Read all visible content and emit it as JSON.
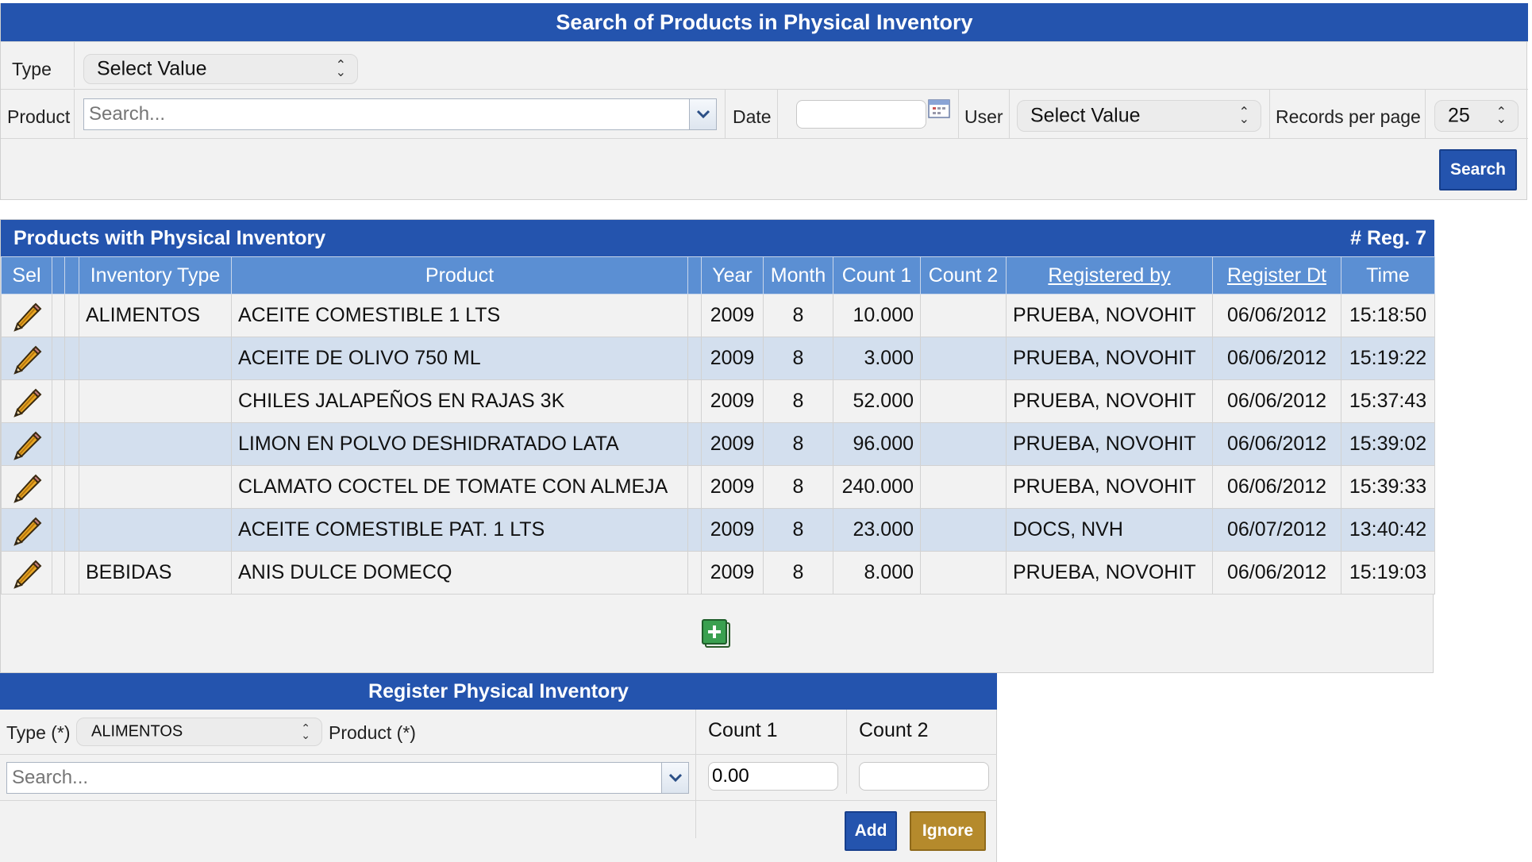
{
  "search": {
    "title": "Search of Products in Physical Inventory",
    "type_label": "Type",
    "type_value": "Select Value",
    "product_label": "Product",
    "product_placeholder": "Search...",
    "date_label": "Date",
    "date_value": "",
    "user_label": "User",
    "user_value": "Select Value",
    "records_label": "Records per page",
    "records_value": "25",
    "search_button": "Search"
  },
  "results": {
    "title": "Products with Physical Inventory",
    "count_label": "# Reg. 7",
    "columns": {
      "sel": "Sel",
      "inventory_type": "Inventory Type",
      "product": "Product",
      "year": "Year",
      "month": "Month",
      "count1": "Count 1",
      "count2": "Count 2",
      "registered_by": "Registered by",
      "register_dt": "Register Dt",
      "time": "Time"
    },
    "rows": [
      {
        "type": "ALIMENTOS",
        "product": "ACEITE COMESTIBLE 1 LTS",
        "year": "2009",
        "month": "8",
        "count1": "10.000",
        "count2": "",
        "registered_by": "PRUEBA, NOVOHIT",
        "register_dt": "06/06/2012",
        "time": "15:18:50"
      },
      {
        "type": "",
        "product": "ACEITE DE OLIVO 750 ML",
        "year": "2009",
        "month": "8",
        "count1": "3.000",
        "count2": "",
        "registered_by": "PRUEBA, NOVOHIT",
        "register_dt": "06/06/2012",
        "time": "15:19:22"
      },
      {
        "type": "",
        "product": "CHILES JALAPEÑOS EN RAJAS 3K",
        "year": "2009",
        "month": "8",
        "count1": "52.000",
        "count2": "",
        "registered_by": "PRUEBA, NOVOHIT",
        "register_dt": "06/06/2012",
        "time": "15:37:43"
      },
      {
        "type": "",
        "product": "LIMON EN POLVO DESHIDRATADO LATA",
        "year": "2009",
        "month": "8",
        "count1": "96.000",
        "count2": "",
        "registered_by": "PRUEBA, NOVOHIT",
        "register_dt": "06/06/2012",
        "time": "15:39:02"
      },
      {
        "type": "",
        "product": "CLAMATO COCTEL DE TOMATE CON ALMEJA",
        "year": "2009",
        "month": "8",
        "count1": "240.000",
        "count2": "",
        "registered_by": "PRUEBA, NOVOHIT",
        "register_dt": "06/06/2012",
        "time": "15:39:33"
      },
      {
        "type": "",
        "product": "ACEITE COMESTIBLE PAT. 1 LTS",
        "year": "2009",
        "month": "8",
        "count1": "23.000",
        "count2": "",
        "registered_by": "DOCS, NVH",
        "register_dt": "06/07/2012",
        "time": "13:40:42"
      },
      {
        "type": "BEBIDAS",
        "product": "ANIS DULCE DOMECQ",
        "year": "2009",
        "month": "8",
        "count1": "8.000",
        "count2": "",
        "registered_by": "PRUEBA, NOVOHIT",
        "register_dt": "06/06/2012",
        "time": "15:19:03"
      }
    ]
  },
  "register": {
    "title": "Register Physical Inventory",
    "type_label": "Type (*)",
    "type_value": "ALIMENTOS",
    "product_label": "Product (*)",
    "product_placeholder": "Search...",
    "count1_label": "Count 1",
    "count2_label": "Count 2",
    "count1_value": "0.00",
    "count2_value": "",
    "add_button": "Add",
    "ignore_button": "Ignore"
  },
  "icons": {
    "edit": "pencil-icon",
    "add_row": "add-square-icon",
    "calendar": "calendar-icon",
    "dropdown": "chevron-down-icon",
    "select_arrows": "updown-arrows-icon"
  },
  "colors": {
    "header_blue": "#2454ae",
    "column_header_blue": "#5b8fd3",
    "row_alt": "#d3dfee",
    "ignore_gold": "#b58a2c"
  }
}
